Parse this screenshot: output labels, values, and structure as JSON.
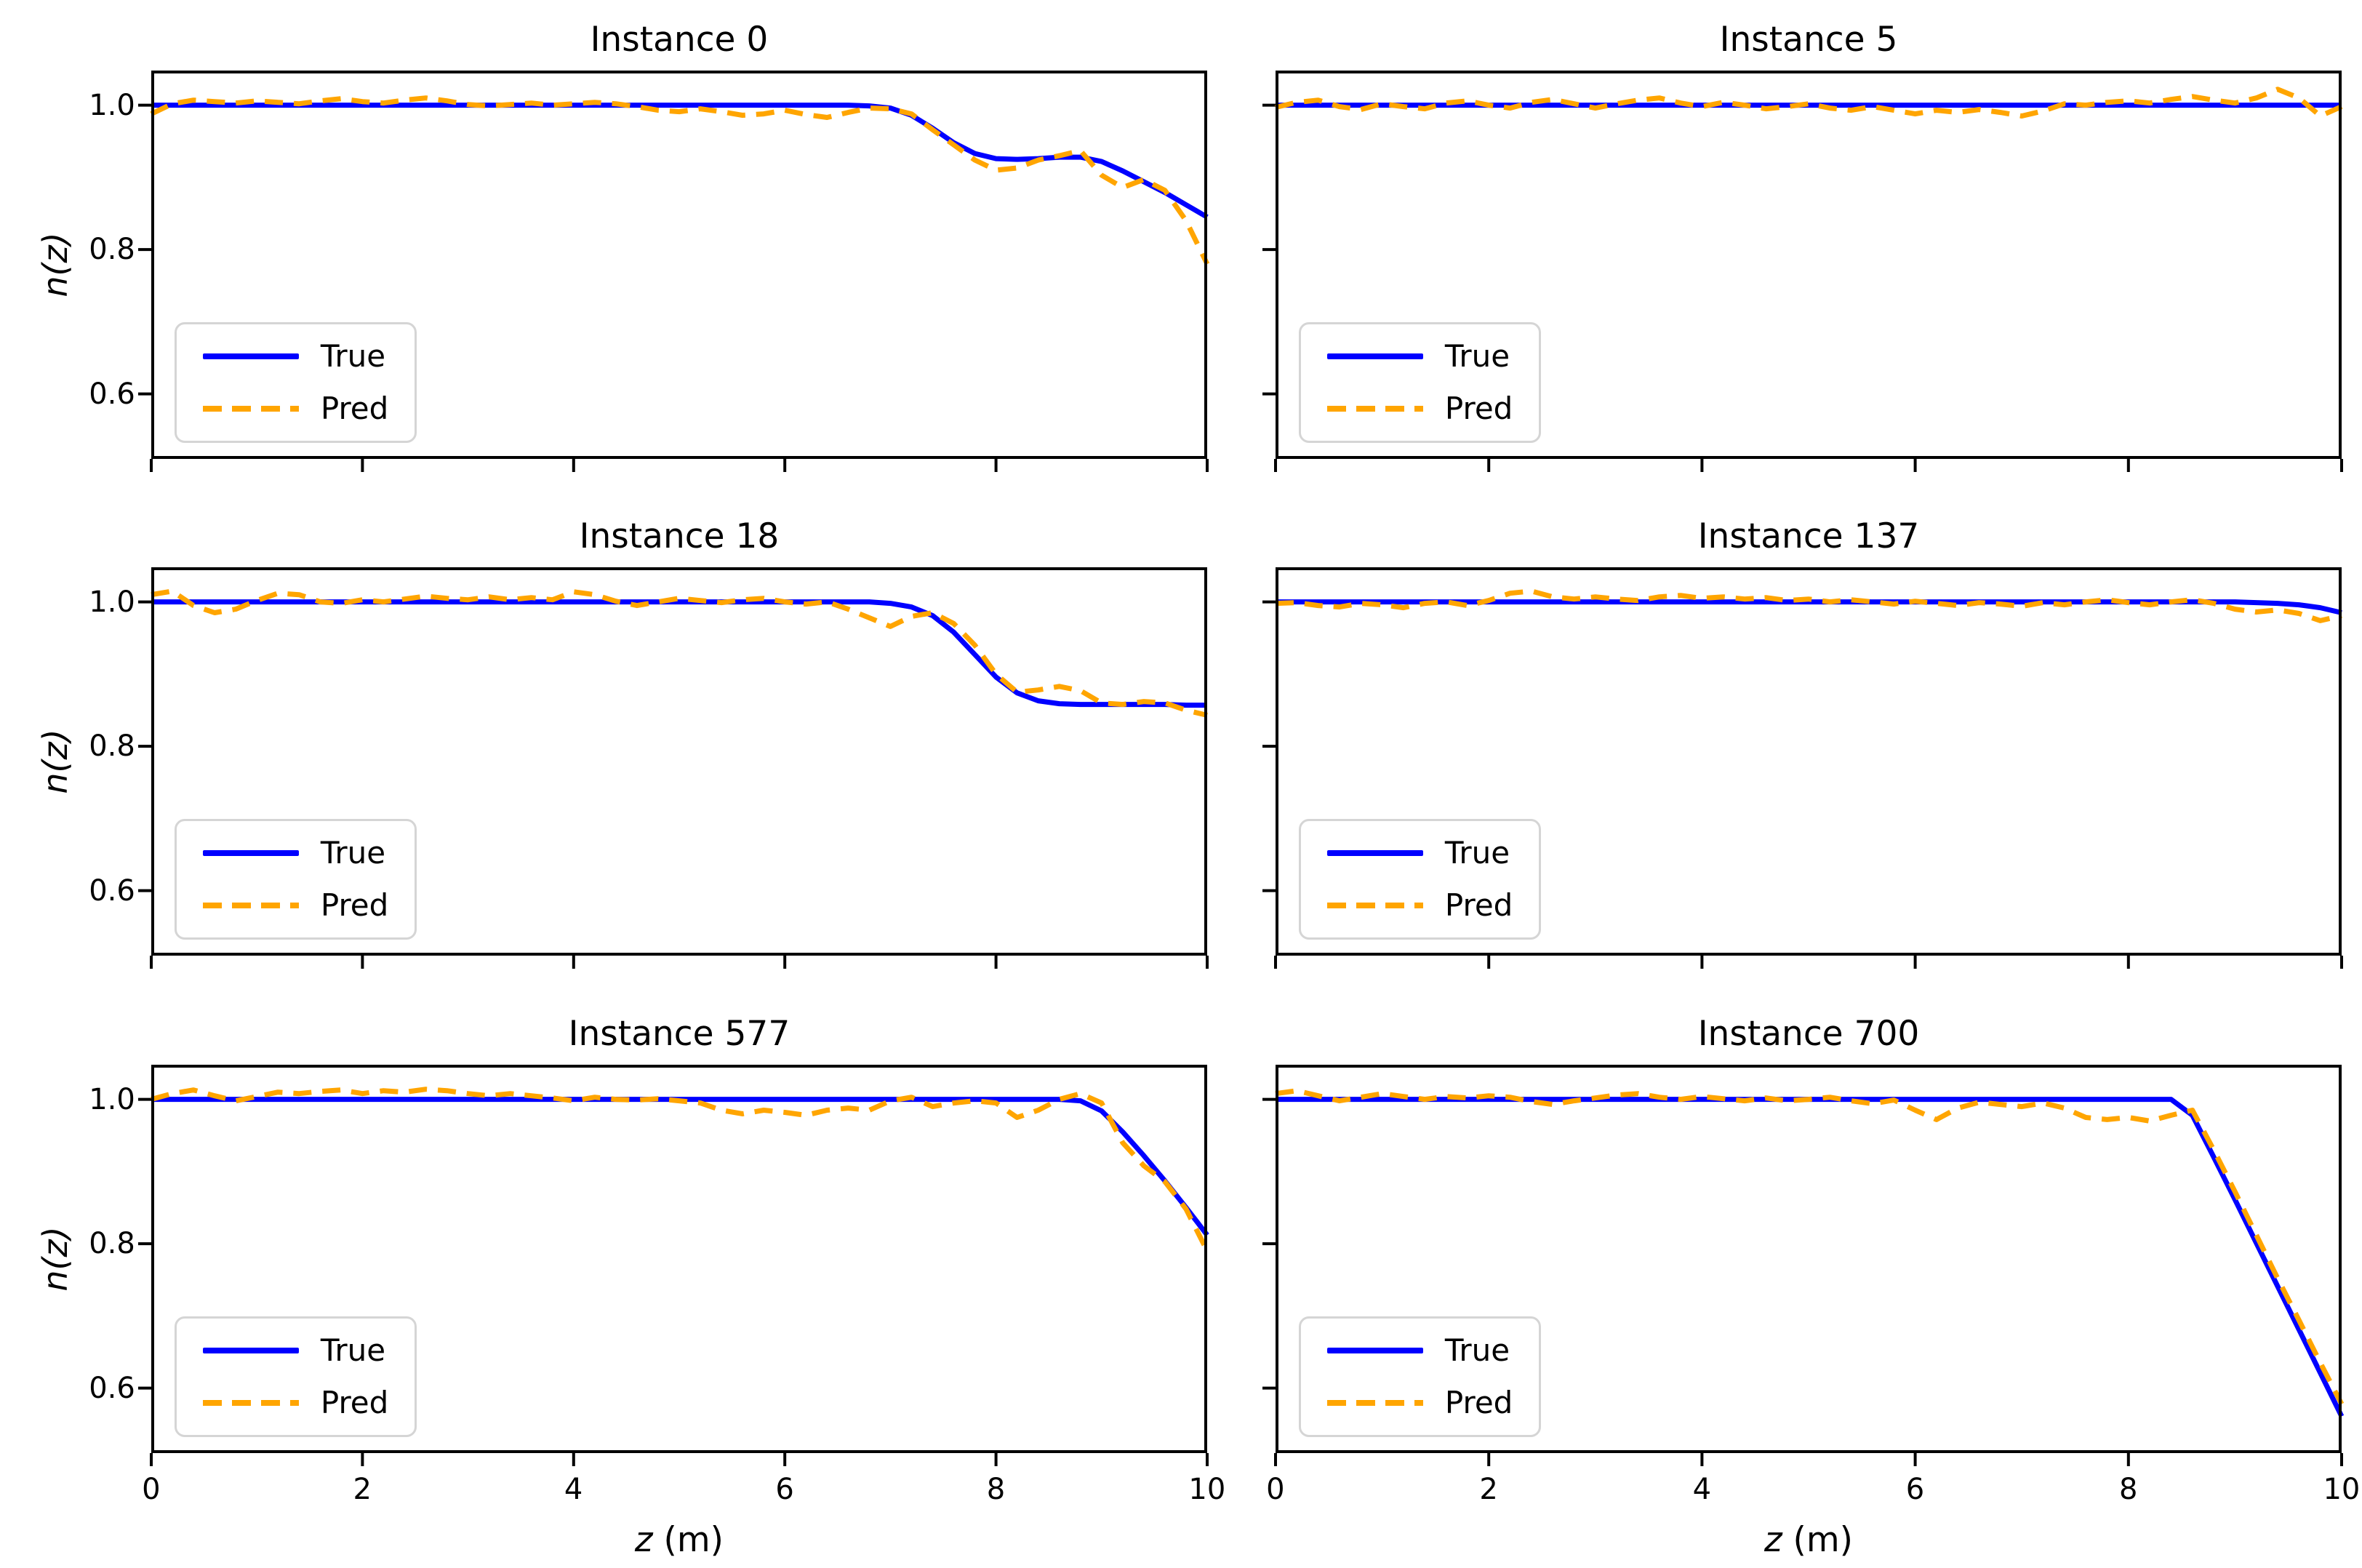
{
  "figure": {
    "background": "#ffffff",
    "xlim": [
      0,
      10
    ],
    "ylim": [
      0.51,
      1.048
    ],
    "xticks": {
      "values": [
        0,
        2,
        4,
        6,
        8,
        10
      ],
      "labels": [
        "0",
        "2",
        "4",
        "6",
        "8",
        "10"
      ]
    },
    "yticks": {
      "values": [
        1.0,
        0.8,
        0.6
      ],
      "labels": [
        "1.0",
        "0.8",
        "0.6"
      ]
    },
    "xlabel_var": "z",
    "xlabel_unit": " (m)",
    "ylabel": "n(z)",
    "colors": {
      "true_line": "#0000ff",
      "pred_line": "#ffa500",
      "spine": "#000000",
      "legend_border": "#d5d5d5",
      "title_text": "#000000"
    }
  },
  "chart_data": [
    {
      "type": "line",
      "title": "Instance 0",
      "xlabel": "z (m)",
      "ylabel": "n(z)",
      "legend_position": "lower left",
      "x": [
        0,
        0.2,
        0.4,
        0.6,
        0.8,
        1,
        1.2,
        1.4,
        1.6,
        1.8,
        2,
        2.2,
        2.4,
        2.6,
        2.8,
        3,
        3.2,
        3.4,
        3.6,
        3.8,
        4,
        4.2,
        4.4,
        4.6,
        4.8,
        5,
        5.2,
        5.4,
        5.6,
        5.8,
        6,
        6.2,
        6.4,
        6.6,
        6.8,
        7,
        7.2,
        7.4,
        7.6,
        7.8,
        8,
        8.2,
        8.4,
        8.6,
        8.8,
        9,
        9.2,
        9.4,
        9.6,
        9.8,
        10
      ],
      "series": [
        {
          "name": "True",
          "values": [
            1,
            1,
            1,
            1,
            1,
            1,
            1,
            1,
            1,
            1,
            1,
            1,
            1,
            1,
            1,
            1,
            1,
            1,
            1,
            1,
            1,
            1,
            1,
            1,
            1,
            1,
            1,
            1,
            1,
            1,
            1,
            1,
            1,
            1,
            0.999,
            0.996,
            0.986,
            0.968,
            0.948,
            0.933,
            0.926,
            0.925,
            0.926,
            0.928,
            0.928,
            0.922,
            0.909,
            0.894,
            0.879,
            0.862,
            0.845
          ]
        },
        {
          "name": "Pred",
          "values": [
            0.988,
            1.002,
            1.007,
            1.005,
            1.003,
            1.006,
            1.004,
            1.002,
            1.006,
            1.009,
            1.005,
            1.003,
            1.007,
            1.01,
            1.006,
            1.001,
            0.999,
            1.001,
            1.003,
            1.0,
            1.002,
            1.004,
            1.002,
            0.998,
            0.993,
            0.991,
            0.995,
            0.991,
            0.986,
            0.988,
            0.993,
            0.987,
            0.983,
            0.99,
            0.996,
            0.995,
            0.988,
            0.966,
            0.945,
            0.924,
            0.91,
            0.913,
            0.924,
            0.93,
            0.937,
            0.903,
            0.886,
            0.897,
            0.882,
            0.84,
            0.78
          ]
        }
      ]
    },
    {
      "type": "line",
      "title": "Instance 5",
      "xlabel": "z (m)",
      "ylabel": "n(z)",
      "legend_position": "lower left",
      "x": [
        0,
        0.2,
        0.4,
        0.6,
        0.8,
        1,
        1.2,
        1.4,
        1.6,
        1.8,
        2,
        2.2,
        2.4,
        2.6,
        2.8,
        3,
        3.2,
        3.4,
        3.6,
        3.8,
        4,
        4.2,
        4.4,
        4.6,
        4.8,
        5,
        5.2,
        5.4,
        5.6,
        5.8,
        6,
        6.2,
        6.4,
        6.6,
        6.8,
        7,
        7.2,
        7.4,
        7.6,
        7.8,
        8,
        8.2,
        8.4,
        8.6,
        8.8,
        9,
        9.2,
        9.4,
        9.6,
        9.8,
        10
      ],
      "series": [
        {
          "name": "True",
          "values": [
            1,
            1,
            1,
            1,
            1,
            1,
            1,
            1,
            1,
            1,
            1,
            1,
            1,
            1,
            1,
            1,
            1,
            1,
            1,
            1,
            1,
            1,
            1,
            1,
            1,
            1,
            1,
            1,
            1,
            1,
            1,
            1,
            1,
            1,
            1,
            1,
            1,
            1,
            1,
            1,
            1,
            1,
            1,
            1,
            1,
            1,
            1,
            1,
            1,
            1,
            1
          ]
        },
        {
          "name": "Pred",
          "values": [
            0.997,
            1.004,
            1.007,
            0.998,
            0.994,
            1.002,
            0.998,
            0.995,
            1.003,
            1.006,
            1.0,
            0.996,
            1.004,
            1.008,
            1.002,
            0.996,
            1.002,
            1.007,
            1.01,
            1.003,
            0.998,
            1.004,
            1.0,
            0.995,
            0.998,
            1.002,
            0.996,
            0.993,
            0.998,
            0.993,
            0.988,
            0.993,
            0.99,
            0.994,
            0.99,
            0.985,
            0.992,
            1.002,
            1.0,
            1.004,
            1.006,
            1.003,
            1.008,
            1.012,
            1.007,
            1.003,
            1.01,
            1.022,
            1.01,
            0.985,
            0.998
          ]
        }
      ]
    },
    {
      "type": "line",
      "title": "Instance 18",
      "xlabel": "z (m)",
      "ylabel": "n(z)",
      "legend_position": "lower left",
      "x": [
        0,
        0.2,
        0.4,
        0.6,
        0.8,
        1,
        1.2,
        1.4,
        1.6,
        1.8,
        2,
        2.2,
        2.4,
        2.6,
        2.8,
        3,
        3.2,
        3.4,
        3.6,
        3.8,
        4,
        4.2,
        4.4,
        4.6,
        4.8,
        5,
        5.2,
        5.4,
        5.6,
        5.8,
        6,
        6.2,
        6.4,
        6.6,
        6.8,
        7,
        7.2,
        7.4,
        7.6,
        7.8,
        8,
        8.2,
        8.4,
        8.6,
        8.8,
        9,
        9.2,
        9.4,
        9.6,
        9.8,
        10
      ],
      "series": [
        {
          "name": "True",
          "values": [
            1,
            1,
            1,
            1,
            1,
            1,
            1,
            1,
            1,
            1,
            1,
            1,
            1,
            1,
            1,
            1,
            1,
            1,
            1,
            1,
            1,
            1,
            1,
            1,
            1,
            1,
            1,
            1,
            1,
            1,
            1,
            1,
            1,
            1,
            1,
            0.998,
            0.993,
            0.981,
            0.958,
            0.927,
            0.896,
            0.874,
            0.863,
            0.859,
            0.858,
            0.858,
            0.858,
            0.858,
            0.858,
            0.857,
            0.857
          ]
        },
        {
          "name": "Pred",
          "values": [
            1.01,
            1.015,
            0.995,
            0.985,
            0.99,
            1.002,
            1.012,
            1.01,
            1.0,
            0.998,
            1.003,
            1.0,
            1.004,
            1.008,
            1.005,
            1.003,
            1.007,
            1.003,
            1.006,
            1.003,
            1.014,
            1.01,
            1.001,
            0.995,
            1.0,
            1.005,
            1.002,
            0.999,
            1.003,
            1.005,
            1.0,
            0.997,
            1.0,
            0.99,
            0.978,
            0.966,
            0.98,
            0.985,
            0.97,
            0.94,
            0.9,
            0.875,
            0.878,
            0.883,
            0.877,
            0.86,
            0.858,
            0.862,
            0.86,
            0.85,
            0.843
          ]
        }
      ]
    },
    {
      "type": "line",
      "title": "Instance 137",
      "xlabel": "z (m)",
      "ylabel": "n(z)",
      "legend_position": "lower left",
      "x": [
        0,
        0.2,
        0.4,
        0.6,
        0.8,
        1,
        1.2,
        1.4,
        1.6,
        1.8,
        2,
        2.2,
        2.4,
        2.6,
        2.8,
        3,
        3.2,
        3.4,
        3.6,
        3.8,
        4,
        4.2,
        4.4,
        4.6,
        4.8,
        5,
        5.2,
        5.4,
        5.6,
        5.8,
        6,
        6.2,
        6.4,
        6.6,
        6.8,
        7,
        7.2,
        7.4,
        7.6,
        7.8,
        8,
        8.2,
        8.4,
        8.6,
        8.8,
        9,
        9.2,
        9.4,
        9.6,
        9.8,
        10
      ],
      "series": [
        {
          "name": "True",
          "values": [
            1,
            1,
            1,
            1,
            1,
            1,
            1,
            1,
            1,
            1,
            1,
            1,
            1,
            1,
            1,
            1,
            1,
            1,
            1,
            1,
            1,
            1,
            1,
            1,
            1,
            1,
            1,
            1,
            1,
            1,
            1,
            1,
            1,
            1,
            1,
            1,
            1,
            1,
            1,
            1,
            1,
            1,
            1,
            1,
            1,
            1,
            0.999,
            0.998,
            0.996,
            0.992,
            0.985
          ]
        },
        {
          "name": "Pred",
          "values": [
            0.998,
            0.999,
            0.995,
            0.993,
            0.998,
            0.996,
            0.992,
            0.998,
            1.0,
            0.995,
            1.002,
            1.012,
            1.015,
            1.007,
            1.004,
            1.007,
            1.004,
            1.002,
            1.007,
            1.009,
            1.005,
            1.007,
            1.004,
            1.006,
            1.002,
            1.004,
            1.0,
            1.003,
            1.0,
            0.997,
            1.001,
            0.998,
            0.995,
            0.999,
            0.997,
            0.994,
            0.999,
            0.996,
            1.0,
            1.003,
            0.999,
            0.996,
            1.0,
            1.003,
            0.998,
            0.99,
            0.986,
            0.989,
            0.984,
            0.974,
            0.981
          ]
        }
      ]
    },
    {
      "type": "line",
      "title": "Instance 577",
      "xlabel": "z (m)",
      "ylabel": "n(z)",
      "legend_position": "lower left",
      "x": [
        0,
        0.2,
        0.4,
        0.6,
        0.8,
        1,
        1.2,
        1.4,
        1.6,
        1.8,
        2,
        2.2,
        2.4,
        2.6,
        2.8,
        3,
        3.2,
        3.4,
        3.6,
        3.8,
        4,
        4.2,
        4.4,
        4.6,
        4.8,
        5,
        5.2,
        5.4,
        5.6,
        5.8,
        6,
        6.2,
        6.4,
        6.6,
        6.8,
        7,
        7.2,
        7.4,
        7.6,
        7.8,
        8,
        8.2,
        8.4,
        8.6,
        8.8,
        9,
        9.2,
        9.4,
        9.6,
        9.8,
        10
      ],
      "series": [
        {
          "name": "True",
          "values": [
            1,
            1,
            1,
            1,
            1,
            1,
            1,
            1,
            1,
            1,
            1,
            1,
            1,
            1,
            1,
            1,
            1,
            1,
            1,
            1,
            1,
            1,
            1,
            1,
            1,
            1,
            1,
            1,
            1,
            1,
            1,
            1,
            1,
            1,
            1,
            1,
            1,
            1,
            1,
            1,
            1,
            1,
            1,
            1,
            0.998,
            0.984,
            0.955,
            0.922,
            0.887,
            0.85,
            0.812
          ]
        },
        {
          "name": "Pred",
          "values": [
            1.0,
            1.008,
            1.013,
            1.005,
            0.998,
            1.004,
            1.01,
            1.008,
            1.011,
            1.013,
            1.008,
            1.012,
            1.01,
            1.014,
            1.012,
            1.008,
            1.005,
            1.008,
            1.005,
            1.002,
            0.998,
            1.003,
            1.0,
            0.999,
            1.001,
            0.998,
            0.995,
            0.985,
            0.98,
            0.985,
            0.982,
            0.978,
            0.985,
            0.988,
            0.985,
            0.998,
            1.003,
            0.99,
            0.995,
            0.998,
            0.995,
            0.975,
            0.985,
            1.0,
            1.008,
            0.995,
            0.94,
            0.908,
            0.886,
            0.848,
            0.79
          ]
        }
      ]
    },
    {
      "type": "line",
      "title": "Instance 700",
      "xlabel": "z (m)",
      "ylabel": "n(z)",
      "legend_position": "lower left",
      "x": [
        0,
        0.2,
        0.4,
        0.6,
        0.8,
        1,
        1.2,
        1.4,
        1.6,
        1.8,
        2,
        2.2,
        2.4,
        2.6,
        2.8,
        3,
        3.2,
        3.4,
        3.6,
        3.8,
        4,
        4.2,
        4.4,
        4.6,
        4.8,
        5,
        5.2,
        5.4,
        5.6,
        5.8,
        6,
        6.2,
        6.4,
        6.6,
        6.8,
        7,
        7.2,
        7.4,
        7.6,
        7.8,
        8,
        8.2,
        8.4,
        8.6,
        8.8,
        9,
        9.2,
        9.4,
        9.6,
        9.8,
        10
      ],
      "series": [
        {
          "name": "True",
          "values": [
            1,
            1,
            1,
            1,
            1,
            1,
            1,
            1,
            1,
            1,
            1,
            1,
            1,
            1,
            1,
            1,
            1,
            1,
            1,
            1,
            1,
            1,
            1,
            1,
            1,
            1,
            1,
            1,
            1,
            1,
            1,
            1,
            1,
            1,
            1,
            1,
            1,
            1,
            1,
            1,
            1,
            1,
            1,
            0.978,
            0.92,
            0.861,
            0.801,
            0.741,
            0.681,
            0.621,
            0.561
          ]
        },
        {
          "name": "Pred",
          "values": [
            1.008,
            1.012,
            1.005,
            0.998,
            1.003,
            1.008,
            1.004,
            1.0,
            1.004,
            1.002,
            1.005,
            1.003,
            0.997,
            0.993,
            0.998,
            1.002,
            1.006,
            1.008,
            1.003,
            1.0,
            1.004,
            1.001,
            0.998,
            1.002,
            0.998,
            1.0,
            1.003,
            0.998,
            0.994,
            0.999,
            0.985,
            0.972,
            0.988,
            0.996,
            0.993,
            0.99,
            0.995,
            0.988,
            0.975,
            0.972,
            0.975,
            0.97,
            0.978,
            0.985,
            0.93,
            0.872,
            0.812,
            0.752,
            0.694,
            0.635,
            0.578
          ]
        }
      ]
    }
  ]
}
